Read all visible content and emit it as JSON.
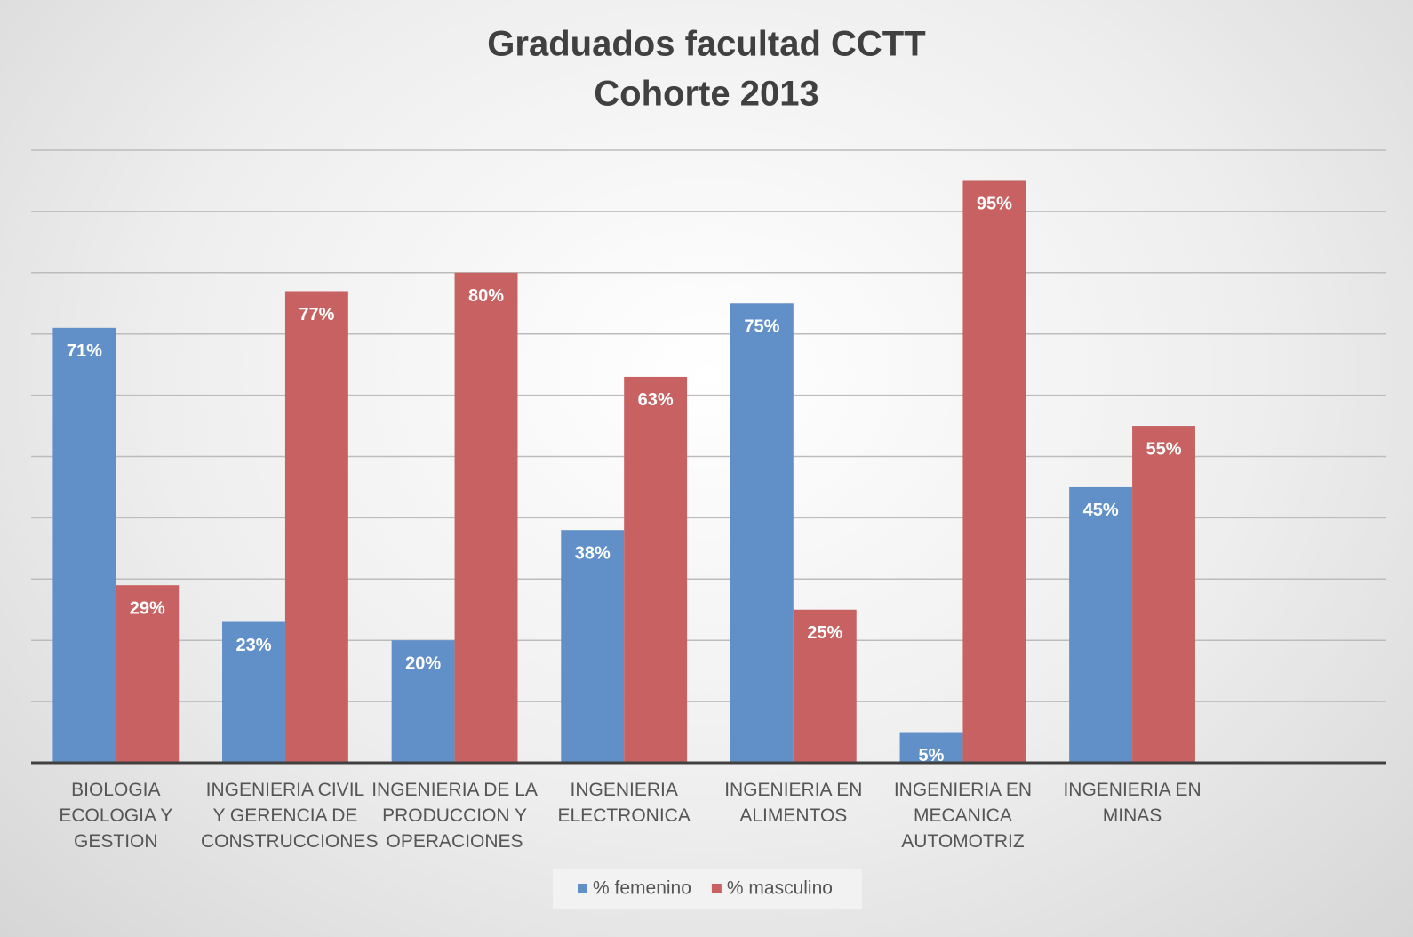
{
  "chart_data": {
    "type": "bar",
    "title": "Graduados facultad CCTT",
    "subtitle": "Cohorte 2013",
    "categories": [
      "BIOLOGIA ECOLOGIA Y GESTION",
      "INGENIERIA CIVIL Y GERENCIA DE CONSTRUCCIONES",
      "INGENIERIA DE LA PRODUCCION Y OPERACIONES",
      "INGENIERIA ELECTRONICA",
      "INGENIERIA EN ALIMENTOS",
      "INGENIERIA EN MECANICA AUTOMOTRIZ",
      "INGENIERIA EN MINAS",
      null
    ],
    "series": [
      {
        "name": "% femenino",
        "color": "#6190c8",
        "values": [
          71,
          23,
          20,
          38,
          75,
          5,
          45,
          null
        ],
        "value_labels": [
          "71%",
          "23%",
          "20%",
          "38%",
          "75%",
          "5%",
          "45%",
          null
        ]
      },
      {
        "name": "% masculino",
        "color": "#c86262",
        "values": [
          29,
          77,
          80,
          63,
          25,
          95,
          55,
          null
        ],
        "value_labels": [
          "29%",
          "77%",
          "80%",
          "63%",
          "25%",
          "95%",
          "55%",
          null
        ]
      }
    ],
    "ylim": [
      0,
      100
    ],
    "yticks": [
      0,
      10,
      20,
      30,
      40,
      50,
      60,
      70,
      80,
      90,
      100
    ],
    "grid": true,
    "legend": "bottom"
  }
}
